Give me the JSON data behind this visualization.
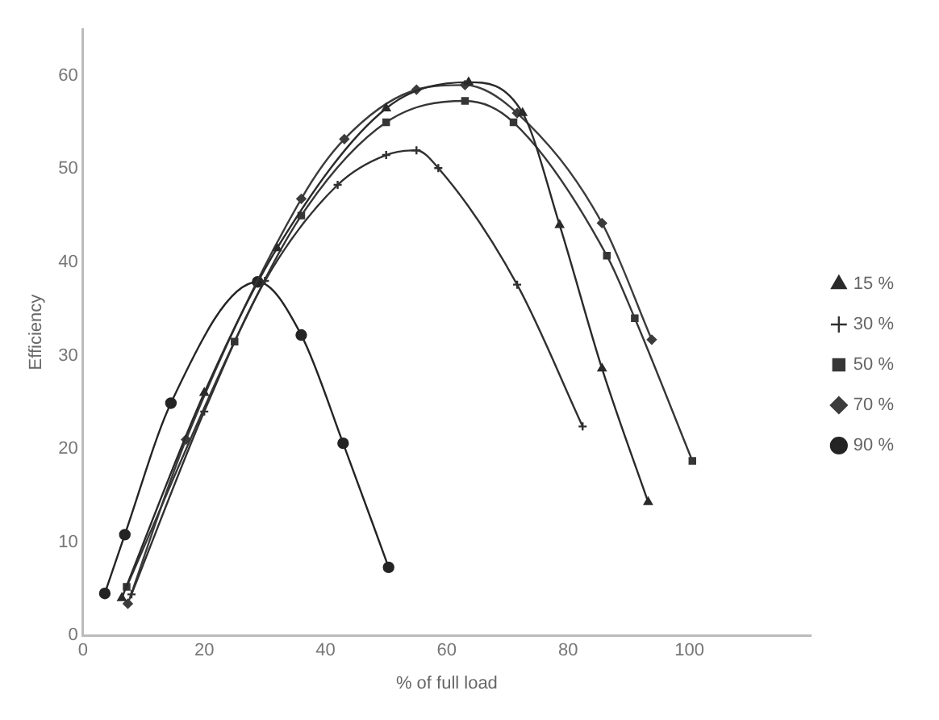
{
  "chart_data": {
    "type": "line",
    "xlabel": "% of full load",
    "ylabel": "Efficiency",
    "xlim": [
      0,
      120
    ],
    "xticks": [
      0,
      20,
      40,
      60,
      80,
      100
    ],
    "ylim": [
      0,
      65
    ],
    "yticks": [
      0,
      10,
      20,
      30,
      40,
      50,
      60
    ],
    "grid": false,
    "legend": "right",
    "line_style": "solid",
    "series": [
      {
        "name": "15 %",
        "color": "#2a2a2a",
        "marker": "triangle",
        "x": [
          6.4,
          20,
          32,
          50,
          63.6,
          72.5,
          78.6,
          85.6,
          93.2
        ],
        "values": [
          4,
          26,
          41.5,
          56.5,
          59.3,
          56,
          44,
          28.6,
          14.3
        ]
      },
      {
        "name": "30 %",
        "color": "#303030",
        "marker": "cross",
        "x": [
          8,
          20,
          30,
          42,
          50,
          55,
          58.6,
          71.6,
          82.4
        ],
        "values": [
          4.4,
          24,
          38,
          48.3,
          51.5,
          52,
          50.1,
          37.6,
          22.4
        ]
      },
      {
        "name": "50 %",
        "color": "#363636",
        "marker": "square",
        "x": [
          7.2,
          25,
          36,
          50,
          63,
          71,
          86.4,
          91,
          100.5
        ],
        "values": [
          5.2,
          31.5,
          45,
          55,
          57.3,
          55,
          40.7,
          34,
          18.7
        ]
      },
      {
        "name": "70 %",
        "color": "#3c3c3c",
        "marker": "diamond",
        "x": [
          7.4,
          17,
          36,
          43.1,
          55,
          63,
          71.6,
          85.6,
          93.8
        ],
        "values": [
          3.4,
          21,
          46.8,
          53.2,
          58.5,
          59,
          56,
          44.2,
          31.7
        ]
      },
      {
        "name": "90 %",
        "color": "#242424",
        "marker": "circle",
        "x": [
          3.6,
          6.9,
          14.5,
          28.8,
          36,
          42.9,
          50.4
        ],
        "values": [
          4.5,
          10.8,
          24.9,
          37.9,
          32.2,
          20.6,
          7.3
        ]
      }
    ]
  }
}
